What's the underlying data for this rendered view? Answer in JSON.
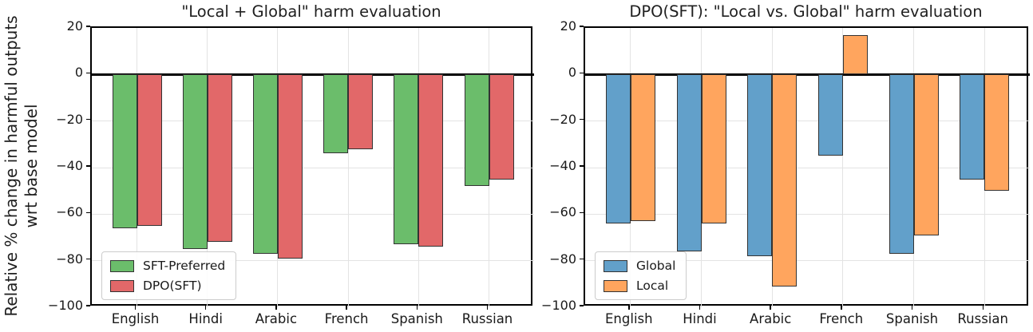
{
  "figure": {
    "ylabel_line1": "Relative % change in harmful outputs",
    "ylabel_line2": "wrt base model"
  },
  "colors": {
    "bar_edge": "#333333",
    "grid": "#e3e3e3",
    "axis": "#000000",
    "text": "#1a1a1a",
    "legend_border": "#cccccc",
    "green": "#6bbd6b",
    "red": "#e26869",
    "blue": "#62a0ca",
    "orange": "#ffa55e"
  },
  "chart_data": [
    {
      "type": "bar",
      "title": "\"Local + Global\" harm evaluation",
      "ylabel": "Relative % change in harmful outputs wrt base model",
      "categories": [
        "English",
        "Hindi",
        "Arabic",
        "French",
        "Spanish",
        "Russian"
      ],
      "series": [
        {
          "name": "SFT-Preferred",
          "color": "#6bbd6b",
          "values": [
            -66,
            -75,
            -77,
            -34,
            -73,
            -48
          ]
        },
        {
          "name": "DPO(SFT)",
          "color": "#e26869",
          "values": [
            -65,
            -72,
            -79,
            -32,
            -74,
            -45
          ]
        }
      ],
      "ylim": [
        -100,
        20
      ],
      "yticks": [
        20,
        0,
        -20,
        -40,
        -60,
        -80,
        -100
      ],
      "grid": true,
      "legend_position": "lower left"
    },
    {
      "type": "bar",
      "title": "DPO(SFT): \"Local vs. Global\" harm evaluation",
      "ylabel": "Relative % change in harmful outputs wrt base model",
      "categories": [
        "English",
        "Hindi",
        "Arabic",
        "French",
        "Spanish",
        "Russian"
      ],
      "series": [
        {
          "name": "Global",
          "color": "#62a0ca",
          "values": [
            -64,
            -76,
            -78,
            -35,
            -77,
            -45
          ]
        },
        {
          "name": "Local",
          "color": "#ffa55e",
          "values": [
            -63,
            -64,
            -91,
            17,
            -69,
            -50
          ]
        }
      ],
      "ylim": [
        -100,
        20
      ],
      "yticks": [
        20,
        0,
        -20,
        -40,
        -60,
        -80,
        -100
      ],
      "grid": true,
      "legend_position": "lower left"
    }
  ]
}
